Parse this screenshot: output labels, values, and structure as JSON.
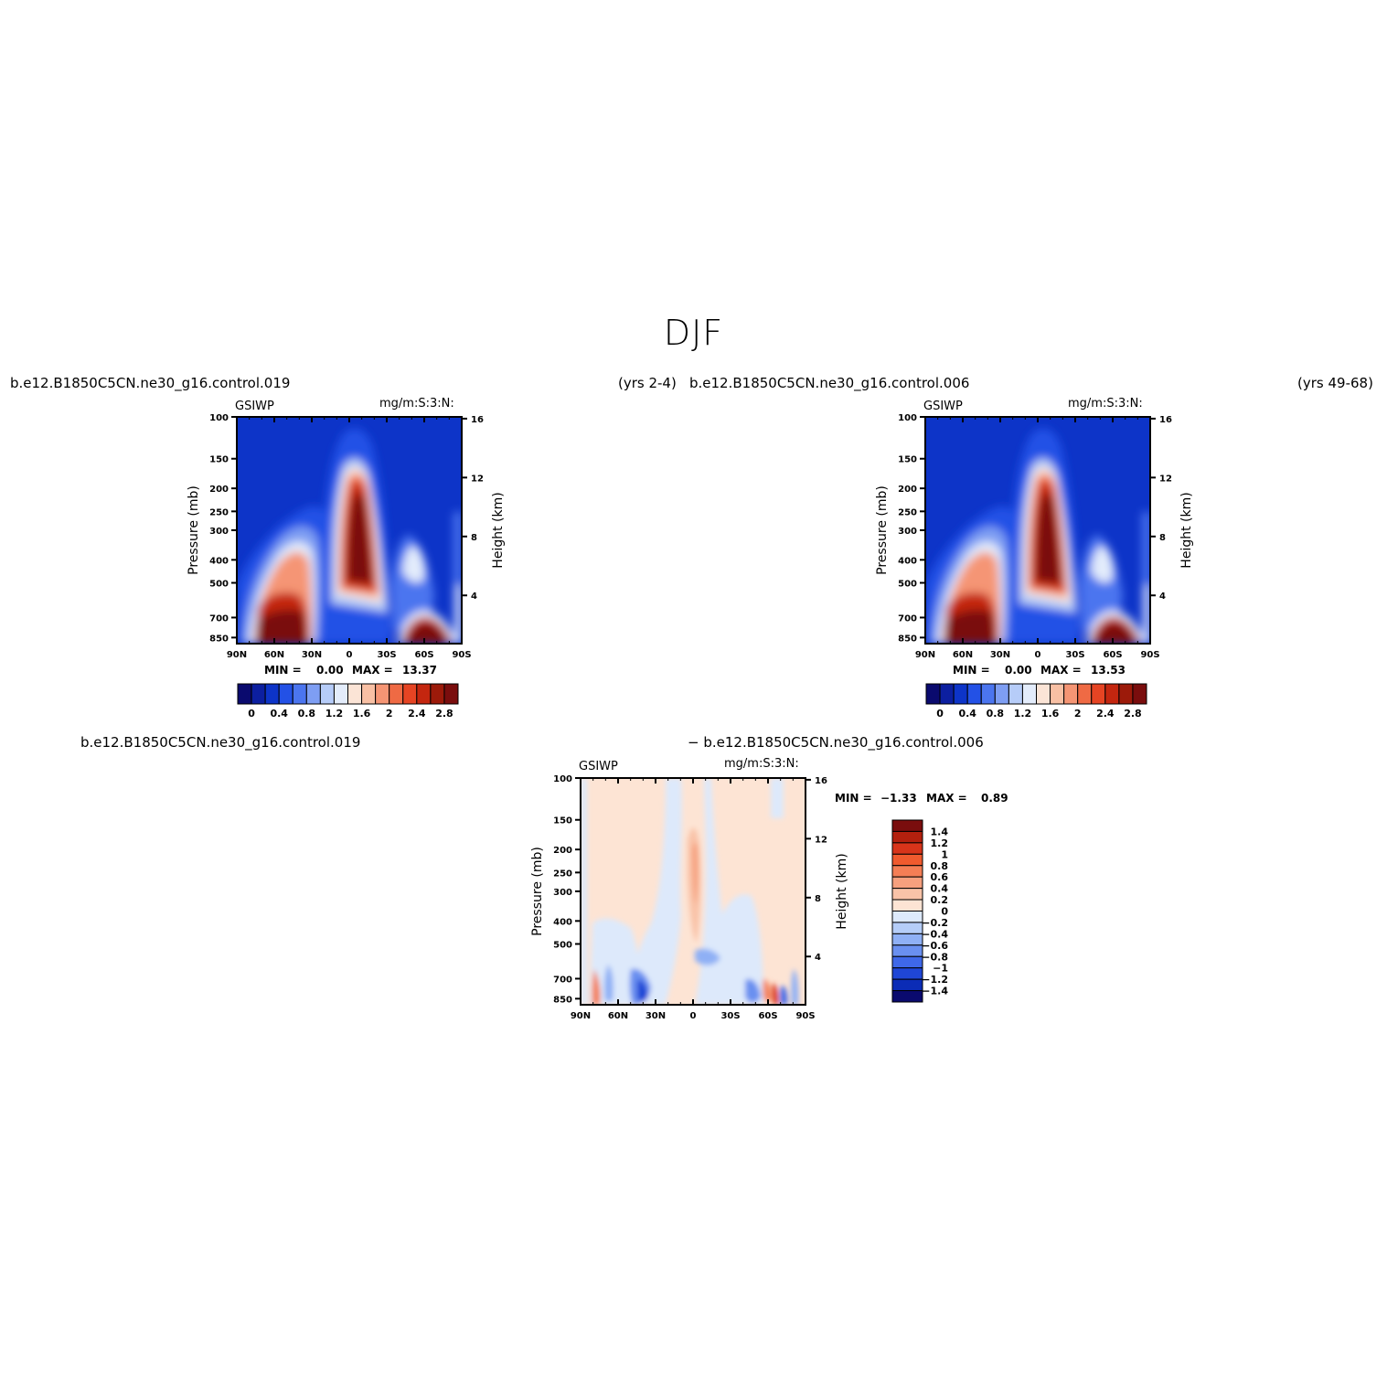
{
  "page_title": "DJF",
  "panels": [
    {
      "id": "p1",
      "case_title": "b.e12.B1850C5CN.ne30_g16.control.019",
      "period": "(yrs 2-4)",
      "left_label": "GSIWP",
      "right_label": "mg/m:S:3:N:",
      "stats": {
        "min_label": "MIN =",
        "min_value": "0.00",
        "max_label": "MAX =",
        "max_value": "13.37"
      }
    },
    {
      "id": "p2",
      "case_title": "b.e12.B1850C5CN.ne30_g16.control.006",
      "period": "(yrs 49-68)",
      "left_label": "GSIWP",
      "right_label": "mg/m:S:3:N:",
      "stats": {
        "min_label": "MIN =",
        "min_value": "0.00",
        "max_label": "MAX =",
        "max_value": "13.53"
      }
    },
    {
      "id": "p3",
      "case_title_left": "b.e12.B1850C5CN.ne30_g16.control.019",
      "case_title_right": "− b.e12.B1850C5CN.ne30_g16.control.006",
      "left_label": "GSIWP",
      "right_label": "mg/m:S:3:N:",
      "stats": {
        "min_label": "MIN =",
        "min_value": "−1.33",
        "max_label": "MAX =",
        "max_value": "0.89"
      }
    }
  ],
  "chart_data": [
    {
      "type": "heatmap",
      "title": "b.e12.B1850C5CN.ne30_g16.control.019",
      "variable": "GSIWP",
      "units": "mg/m:S:3:N:",
      "xlabel": "",
      "ylabel": "Pressure (mb)",
      "y2label": "Height (km)",
      "x_ticks": [
        "90N",
        "60N",
        "30N",
        "0",
        "30S",
        "60S",
        "90S"
      ],
      "y_ticks": [
        100,
        150,
        200,
        250,
        300,
        400,
        500,
        700,
        850
      ],
      "y2_ticks": [
        16,
        12,
        8,
        4
      ],
      "ylim": [
        1000,
        100
      ],
      "y_scale": "log",
      "colorbar": {
        "orientation": "horizontal",
        "labels": [
          "0",
          "0.4",
          "0.8",
          "1.2",
          "1.6",
          "2",
          "2.4",
          "2.8"
        ],
        "colors": [
          "#0a0a6e",
          "#0c1fa0",
          "#0d34c8",
          "#2351e6",
          "#4b75ef",
          "#7e9ef3",
          "#b6ccf8",
          "#e3ecfb",
          "#fbe4d6",
          "#f8c0a4",
          "#f59574",
          "#ef6a44",
          "#e64423",
          "#c4260f",
          "#9c1a0a",
          "#7a0d0d"
        ]
      },
      "min": 0.0,
      "max": 13.37
    },
    {
      "type": "heatmap",
      "title": "b.e12.B1850C5CN.ne30_g16.control.006",
      "variable": "GSIWP",
      "units": "mg/m:S:3:N:",
      "xlabel": "",
      "ylabel": "Pressure (mb)",
      "y2label": "Height (km)",
      "x_ticks": [
        "90N",
        "60N",
        "30N",
        "0",
        "30S",
        "60S",
        "90S"
      ],
      "y_ticks": [
        100,
        150,
        200,
        250,
        300,
        400,
        500,
        700,
        850
      ],
      "y2_ticks": [
        16,
        12,
        8,
        4
      ],
      "ylim": [
        1000,
        100
      ],
      "y_scale": "log",
      "colorbar": {
        "orientation": "horizontal",
        "labels": [
          "0",
          "0.4",
          "0.8",
          "1.2",
          "1.6",
          "2",
          "2.4",
          "2.8"
        ],
        "colors": [
          "#0a0a6e",
          "#0c1fa0",
          "#0d34c8",
          "#2351e6",
          "#4b75ef",
          "#7e9ef3",
          "#b6ccf8",
          "#e3ecfb",
          "#fbe4d6",
          "#f8c0a4",
          "#f59574",
          "#ef6a44",
          "#e64423",
          "#c4260f",
          "#9c1a0a",
          "#7a0d0d"
        ]
      },
      "min": 0.0,
      "max": 13.53
    },
    {
      "type": "heatmap",
      "title": "b.e12.B1850C5CN.ne30_g16.control.019 − b.e12.B1850C5CN.ne30_g16.control.006",
      "variable": "GSIWP",
      "units": "mg/m:S:3:N:",
      "xlabel": "",
      "ylabel": "Pressure (mb)",
      "y2label": "Height (km)",
      "x_ticks": [
        "90N",
        "60N",
        "30N",
        "0",
        "30S",
        "60S",
        "90S"
      ],
      "y_ticks": [
        100,
        150,
        200,
        250,
        300,
        400,
        500,
        700,
        850
      ],
      "y2_ticks": [
        16,
        12,
        8,
        4
      ],
      "ylim": [
        1000,
        100
      ],
      "y_scale": "log",
      "colorbar": {
        "orientation": "vertical",
        "labels": [
          "1.4",
          "1.2",
          "1",
          "0.8",
          "0.6",
          "0.4",
          "0.2",
          "0",
          "−0.2",
          "−0.4",
          "−0.6",
          "−0.8",
          "−1",
          "−1.2",
          "−1.4"
        ],
        "colors": [
          "#7a0d0d",
          "#b3200e",
          "#d8341a",
          "#f05a2e",
          "#f47e55",
          "#f6a07e",
          "#f9c3a8",
          "#fde4d4",
          "#dde9fb",
          "#b5cdf8",
          "#8fb0f5",
          "#6a90f0",
          "#3f68e8",
          "#1f46d6",
          "#0b2cb6",
          "#0a0a6e"
        ]
      },
      "min": -1.33,
      "max": 0.89
    }
  ]
}
